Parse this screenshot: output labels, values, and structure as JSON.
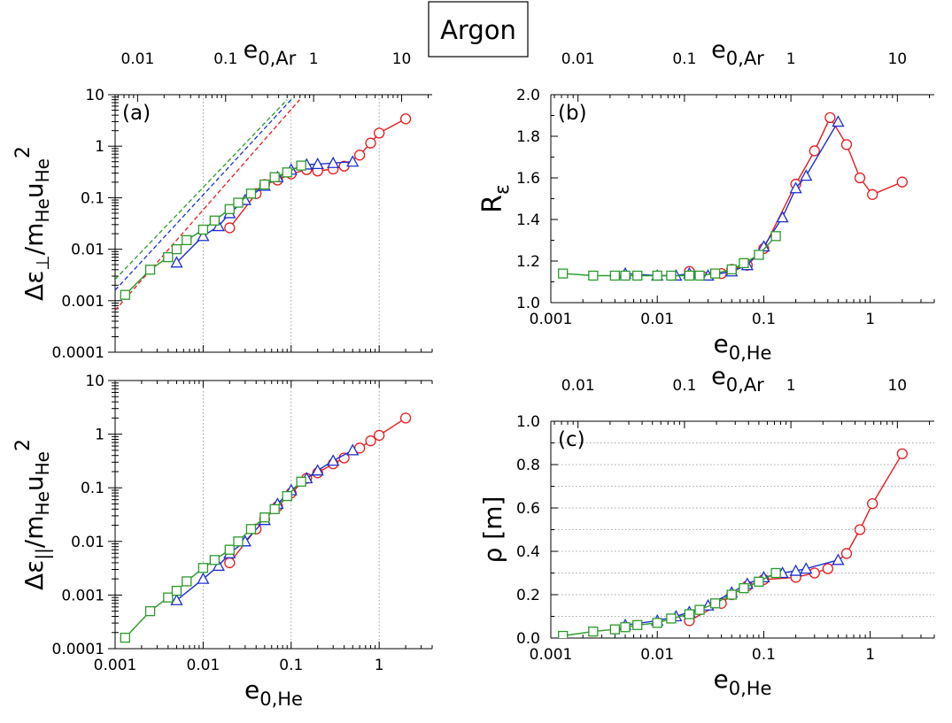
{
  "header": {
    "title": "Argon"
  },
  "colors": {
    "red": "#e8191d",
    "blue": "#1a2fd0",
    "green": "#2a9a2a",
    "grid": "#8a8a8a"
  },
  "chart_data": [
    {
      "id": "a",
      "type": "line",
      "panel_label": "(a)",
      "xscale": "log",
      "yscale": "log",
      "xlim": [
        0.001,
        4
      ],
      "ylim": [
        0.0001,
        10
      ],
      "x_ticks": [
        "0.001",
        "0.01",
        "0.1",
        "1"
      ],
      "y_ticks": [
        "0.0001",
        "0.001",
        "0.01",
        "0.1",
        "1",
        "10"
      ],
      "top_axis": {
        "label": "e0,Ar",
        "label_main": "e",
        "label_sub": "0,Ar",
        "ticks": [
          "0.01",
          "0.1",
          "1",
          "10"
        ],
        "tick_values_he": [
          0.0018,
          0.018,
          0.18,
          1.8
        ]
      },
      "ylabel": "Δε⊥/mHeuHe2",
      "ylabel_parts": {
        "main": "Δε",
        "sub1": "⊥",
        "div": "/m",
        "sub2": "He",
        "u": "u",
        "sub3": "He",
        "sup": "2"
      },
      "grid": "vertical-dotted",
      "reference_lines": [
        {
          "color": "green",
          "from": [
            0.001,
            0.0026
          ],
          "to": [
            0.09,
            8
          ]
        },
        {
          "color": "blue",
          "from": [
            0.001,
            0.0016
          ],
          "to": [
            0.1,
            8
          ]
        },
        {
          "color": "red",
          "from": [
            0.001,
            0.00065
          ],
          "to": [
            0.125,
            8
          ]
        }
      ],
      "series": [
        {
          "color": "red",
          "marker": "circle",
          "x": [
            0.02,
            0.04,
            0.05,
            0.07,
            0.1,
            0.15,
            0.2,
            0.3,
            0.4,
            0.6,
            0.8,
            1.0,
            2.0
          ],
          "y": [
            0.026,
            0.12,
            0.18,
            0.22,
            0.29,
            0.35,
            0.33,
            0.36,
            0.41,
            0.67,
            1.15,
            1.8,
            3.4
          ]
        },
        {
          "color": "blue",
          "marker": "triangle",
          "x": [
            0.005,
            0.01,
            0.015,
            0.02,
            0.03,
            0.05,
            0.07,
            0.1,
            0.15,
            0.2,
            0.3,
            0.5
          ],
          "y": [
            0.0055,
            0.018,
            0.028,
            0.05,
            0.09,
            0.17,
            0.25,
            0.35,
            0.44,
            0.45,
            0.47,
            0.5
          ]
        },
        {
          "color": "green",
          "marker": "square",
          "x": [
            0.0013,
            0.0025,
            0.004,
            0.005,
            0.0065,
            0.01,
            0.0135,
            0.02,
            0.025,
            0.035,
            0.05,
            0.065,
            0.09,
            0.13
          ],
          "y": [
            0.0013,
            0.004,
            0.007,
            0.01,
            0.015,
            0.024,
            0.036,
            0.06,
            0.08,
            0.12,
            0.18,
            0.25,
            0.31,
            0.42
          ]
        }
      ]
    },
    {
      "id": "b",
      "type": "line",
      "panel_label": "(b)",
      "xscale": "log",
      "yscale": "linear",
      "xlim": [
        0.001,
        4
      ],
      "ylim": [
        1.0,
        2.0
      ],
      "x_ticks": [
        "0.001",
        "0.01",
        "0.1",
        "1"
      ],
      "y_ticks": [
        "1.0",
        "1.2",
        "1.4",
        "1.6",
        "1.8",
        "2.0"
      ],
      "top_axis": {
        "label": "e0,Ar",
        "label_main": "e",
        "label_sub": "0,Ar",
        "ticks": [
          "0.01",
          "0.1",
          "1",
          "10"
        ],
        "tick_values_he": [
          0.0018,
          0.018,
          0.18,
          1.8
        ]
      },
      "xlabel": "e0,He",
      "xlabel_main": "e",
      "xlabel_sub": "0,He",
      "ylabel": "Rε",
      "ylabel_main": "R",
      "ylabel_sub": "ε",
      "grid": "none",
      "series": [
        {
          "color": "red",
          "marker": "circle",
          "x": [
            0.02,
            0.04,
            0.05,
            0.07,
            0.1,
            0.2,
            0.3,
            0.42,
            0.6,
            0.8,
            1.05,
            2.0
          ],
          "y": [
            1.15,
            1.14,
            1.16,
            1.18,
            1.26,
            1.57,
            1.73,
            1.89,
            1.76,
            1.6,
            1.52,
            1.58
          ]
        },
        {
          "color": "blue",
          "marker": "triangle",
          "x": [
            0.005,
            0.01,
            0.015,
            0.02,
            0.03,
            0.05,
            0.07,
            0.1,
            0.15,
            0.2,
            0.25,
            0.5
          ],
          "y": [
            1.14,
            1.13,
            1.13,
            1.14,
            1.13,
            1.15,
            1.18,
            1.27,
            1.41,
            1.55,
            1.61,
            1.87
          ]
        },
        {
          "color": "green",
          "marker": "square",
          "x": [
            0.0013,
            0.0025,
            0.004,
            0.005,
            0.0065,
            0.01,
            0.0135,
            0.02,
            0.025,
            0.035,
            0.05,
            0.065,
            0.09,
            0.13
          ],
          "y": [
            1.14,
            1.13,
            1.13,
            1.13,
            1.13,
            1.13,
            1.13,
            1.13,
            1.13,
            1.14,
            1.16,
            1.19,
            1.23,
            1.32
          ]
        }
      ]
    },
    {
      "id": "a2",
      "type": "line",
      "panel_label": "",
      "xscale": "log",
      "yscale": "log",
      "xlim": [
        0.001,
        4
      ],
      "ylim": [
        0.0001,
        10
      ],
      "x_ticks": [
        "0.001",
        "0.01",
        "0.1",
        "1"
      ],
      "y_ticks": [
        "0.0001",
        "0.001",
        "0.01",
        "0.1",
        "1",
        "10"
      ],
      "xlabel": "e0,He",
      "xlabel_main": "e",
      "xlabel_sub": "0,He",
      "ylabel": "Δε||/mHeuHe2",
      "ylabel_parts": {
        "main": "Δε",
        "sub1": "||",
        "div": "/m",
        "sub2": "He",
        "u": "u",
        "sub3": "He",
        "sup": "2"
      },
      "grid": "vertical-dotted",
      "series": [
        {
          "color": "red",
          "marker": "circle",
          "x": [
            0.02,
            0.04,
            0.05,
            0.07,
            0.1,
            0.15,
            0.2,
            0.3,
            0.4,
            0.6,
            0.8,
            1.0,
            2.0
          ],
          "y": [
            0.004,
            0.017,
            0.026,
            0.045,
            0.08,
            0.15,
            0.19,
            0.28,
            0.36,
            0.55,
            0.75,
            0.95,
            2.0
          ]
        },
        {
          "color": "blue",
          "marker": "triangle",
          "x": [
            0.005,
            0.01,
            0.015,
            0.02,
            0.03,
            0.05,
            0.07,
            0.1,
            0.15,
            0.2,
            0.3,
            0.5
          ],
          "y": [
            0.0008,
            0.002,
            0.0035,
            0.006,
            0.01,
            0.025,
            0.05,
            0.09,
            0.15,
            0.21,
            0.32,
            0.5
          ]
        },
        {
          "color": "green",
          "marker": "square",
          "x": [
            0.0013,
            0.0025,
            0.004,
            0.005,
            0.0065,
            0.01,
            0.0135,
            0.02,
            0.025,
            0.035,
            0.05,
            0.065,
            0.09,
            0.13
          ],
          "y": [
            0.00016,
            0.0005,
            0.0009,
            0.0012,
            0.0018,
            0.0032,
            0.0045,
            0.007,
            0.01,
            0.017,
            0.028,
            0.04,
            0.07,
            0.13
          ]
        }
      ]
    },
    {
      "id": "c",
      "type": "line",
      "panel_label": "(c)",
      "xscale": "log",
      "yscale": "linear",
      "xlim": [
        0.001,
        4
      ],
      "ylim": [
        0.0,
        1.0
      ],
      "x_ticks": [
        "0.001",
        "0.01",
        "0.1",
        "1"
      ],
      "y_ticks": [
        "0.0",
        "0.2",
        "0.4",
        "0.6",
        "0.8",
        "1.0"
      ],
      "top_axis": {
        "label": "e0,Ar",
        "label_main": "e",
        "label_sub": "0,Ar",
        "ticks": [
          "0.01",
          "0.1",
          "1",
          "10"
        ],
        "tick_values_he": [
          0.0018,
          0.018,
          0.18,
          1.8
        ]
      },
      "xlabel": "e0,He",
      "xlabel_main": "e",
      "xlabel_sub": "0,He",
      "ylabel": "ρ [m]",
      "grid": "horizontal-dotted",
      "series": [
        {
          "color": "red",
          "marker": "circle",
          "x": [
            0.02,
            0.04,
            0.05,
            0.07,
            0.1,
            0.2,
            0.3,
            0.4,
            0.6,
            0.8,
            1.05,
            2.0
          ],
          "y": [
            0.08,
            0.16,
            0.2,
            0.24,
            0.27,
            0.28,
            0.3,
            0.32,
            0.39,
            0.5,
            0.62,
            0.85
          ]
        },
        {
          "color": "blue",
          "marker": "triangle",
          "x": [
            0.005,
            0.01,
            0.015,
            0.02,
            0.03,
            0.05,
            0.07,
            0.1,
            0.15,
            0.2,
            0.25,
            0.5
          ],
          "y": [
            0.06,
            0.08,
            0.1,
            0.12,
            0.15,
            0.21,
            0.25,
            0.28,
            0.3,
            0.31,
            0.32,
            0.36
          ]
        },
        {
          "color": "green",
          "marker": "square",
          "x": [
            0.0013,
            0.0025,
            0.004,
            0.005,
            0.0065,
            0.01,
            0.0135,
            0.02,
            0.025,
            0.035,
            0.05,
            0.065,
            0.09,
            0.13
          ],
          "y": [
            0.01,
            0.03,
            0.04,
            0.05,
            0.06,
            0.07,
            0.09,
            0.11,
            0.13,
            0.16,
            0.2,
            0.23,
            0.26,
            0.3
          ]
        }
      ]
    }
  ]
}
